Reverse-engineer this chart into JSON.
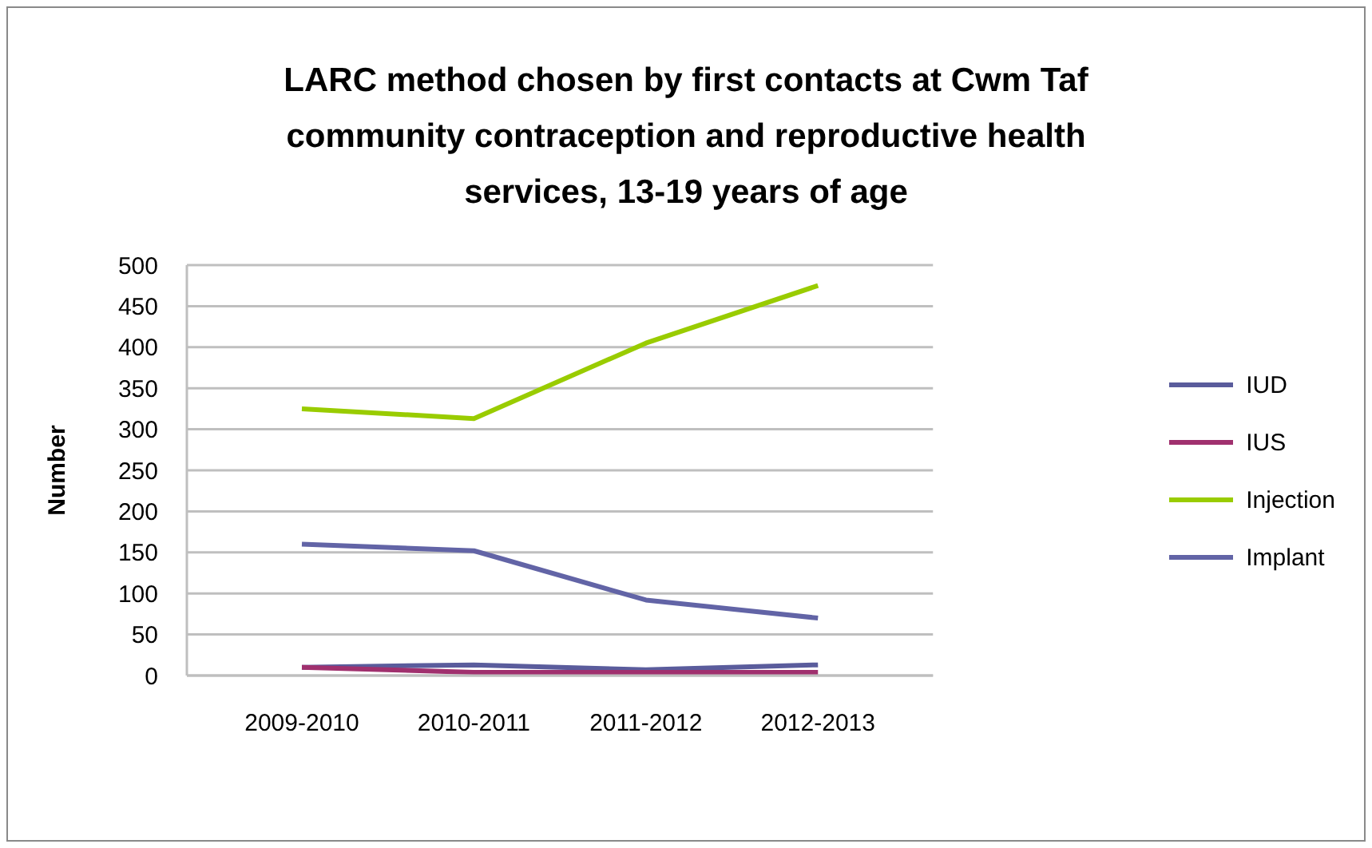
{
  "chart_data": {
    "type": "line",
    "title": "LARC method chosen by first contacts at Cwm Taf community contraception and reproductive health services, 13-19 years of age",
    "ylabel": "Number",
    "categories": [
      "2009-2010",
      "2010-2011",
      "2011-2012",
      "2012-2013"
    ],
    "series": [
      {
        "name": "IUD",
        "color": "#5a5c9c",
        "values": [
          10,
          13,
          7,
          13
        ]
      },
      {
        "name": "IUS",
        "color": "#a0306e",
        "values": [
          10,
          4,
          4,
          4
        ]
      },
      {
        "name": "Injection",
        "color": "#99cc00",
        "values": [
          325,
          313,
          405,
          475
        ]
      },
      {
        "name": "Implant",
        "color": "#6264a6",
        "values": [
          160,
          152,
          92,
          70
        ]
      }
    ],
    "ylim": [
      0,
      500
    ],
    "yticks": [
      0,
      50,
      100,
      150,
      200,
      250,
      300,
      350,
      400,
      450,
      500
    ],
    "grid": "y",
    "legend": "right",
    "marker": "none",
    "line_style": "solid"
  }
}
